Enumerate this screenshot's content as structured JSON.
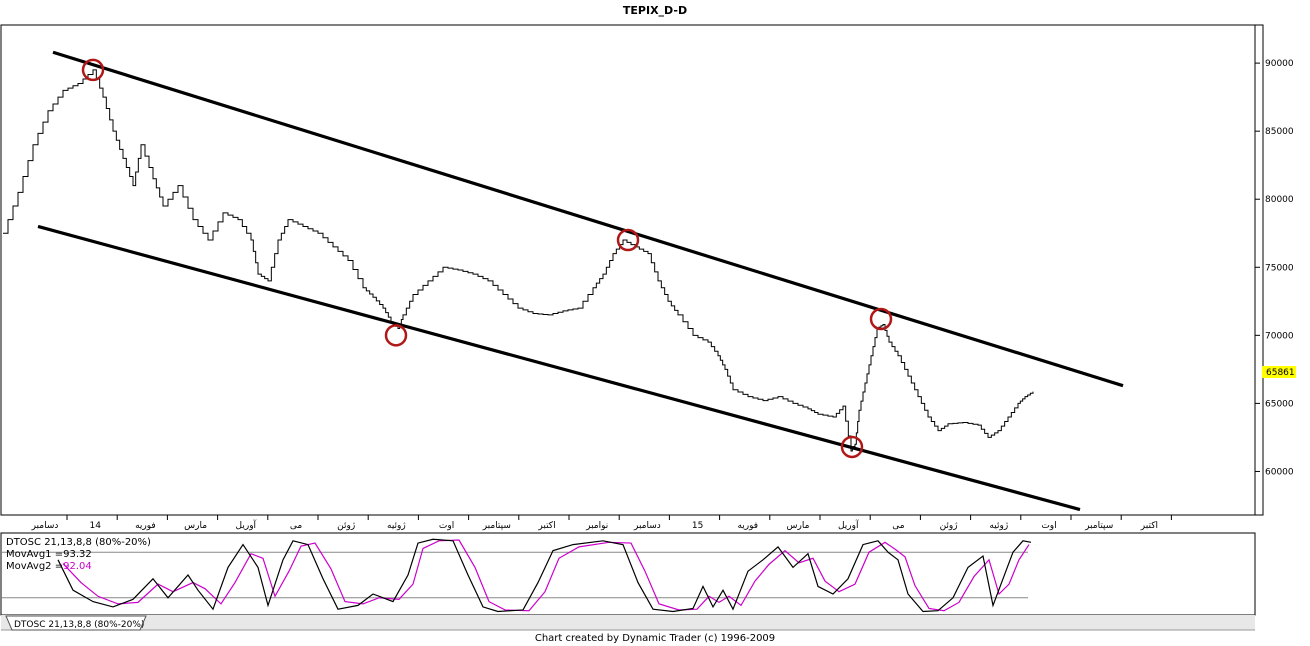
{
  "chart_data": [
    {
      "type": "line",
      "title": "TEPIX_D-D",
      "ylim": [
        56800,
        92800
      ],
      "y_ticks": [
        "90000",
        "85000",
        "80000",
        "75000",
        "70000",
        "65000",
        "60000"
      ],
      "last_value_label": "65861",
      "last_value_color": "#ffff00",
      "x_month_labels": [
        "دسامبر",
        "14",
        "فوریه",
        "مارس",
        "آوریل",
        "می",
        "ژوئن",
        "ژوئیه",
        "اوت",
        "سپتامبر",
        "اکتبر",
        "نوامبر",
        "دسامبر",
        "15",
        "فوریه",
        "مارس",
        "آوریل",
        "می",
        "ژوئن",
        "ژوئیه",
        "اوت",
        "سپتامبر",
        "اکتبر"
      ],
      "price_points": [
        [
          0,
          77500
        ],
        [
          15,
          80500
        ],
        [
          30,
          84000
        ],
        [
          45,
          86500
        ],
        [
          60,
          88000
        ],
        [
          75,
          88500
        ],
        [
          90,
          89500
        ],
        [
          100,
          87500
        ],
        [
          110,
          85000
        ],
        [
          120,
          83000
        ],
        [
          130,
          81000
        ],
        [
          138,
          84000
        ],
        [
          150,
          81500
        ],
        [
          160,
          79500
        ],
        [
          175,
          81000
        ],
        [
          190,
          78500
        ],
        [
          205,
          77000
        ],
        [
          220,
          79000
        ],
        [
          235,
          78500
        ],
        [
          248,
          77000
        ],
        [
          255,
          74500
        ],
        [
          265,
          74000
        ],
        [
          275,
          77000
        ],
        [
          285,
          78500
        ],
        [
          300,
          78000
        ],
        [
          315,
          77500
        ],
        [
          330,
          76500
        ],
        [
          345,
          75500
        ],
        [
          360,
          73500
        ],
        [
          370,
          72800
        ],
        [
          380,
          72000
        ],
        [
          388,
          71000
        ],
        [
          395,
          70500
        ],
        [
          400,
          71500
        ],
        [
          410,
          73000
        ],
        [
          425,
          74000
        ],
        [
          440,
          75000
        ],
        [
          455,
          74800
        ],
        [
          470,
          74500
        ],
        [
          485,
          74000
        ],
        [
          500,
          73000
        ],
        [
          515,
          72000
        ],
        [
          530,
          71600
        ],
        [
          545,
          71500
        ],
        [
          560,
          71800
        ],
        [
          575,
          72000
        ],
        [
          590,
          73500
        ],
        [
          600,
          74500
        ],
        [
          610,
          76000
        ],
        [
          620,
          77000
        ],
        [
          632,
          76500
        ],
        [
          645,
          76000
        ],
        [
          655,
          74000
        ],
        [
          665,
          72500
        ],
        [
          675,
          71500
        ],
        [
          690,
          70000
        ],
        [
          705,
          69500
        ],
        [
          715,
          68500
        ],
        [
          722,
          67500
        ],
        [
          730,
          66000
        ],
        [
          745,
          65500
        ],
        [
          760,
          65200
        ],
        [
          775,
          65500
        ],
        [
          790,
          65000
        ],
        [
          805,
          64600
        ],
        [
          815,
          64200
        ],
        [
          830,
          64000
        ],
        [
          840,
          64800
        ],
        [
          848,
          61500
        ],
        [
          852,
          62000
        ],
        [
          856,
          64500
        ],
        [
          862,
          66500
        ],
        [
          868,
          68500
        ],
        [
          874,
          70500
        ],
        [
          880,
          70800
        ],
        [
          886,
          69500
        ],
        [
          895,
          68500
        ],
        [
          905,
          67000
        ],
        [
          915,
          65500
        ],
        [
          925,
          64000
        ],
        [
          935,
          63000
        ],
        [
          945,
          63500
        ],
        [
          960,
          63600
        ],
        [
          975,
          63400
        ],
        [
          985,
          62500
        ],
        [
          995,
          63000
        ],
        [
          1005,
          64000
        ],
        [
          1015,
          65000
        ],
        [
          1022,
          65500
        ],
        [
          1030,
          65861
        ]
      ],
      "annotation_circles": [
        [
          90,
          89500
        ],
        [
          393,
          70000
        ],
        [
          625,
          77000
        ],
        [
          849,
          61800
        ],
        [
          878,
          71200
        ]
      ],
      "trend_lines": [
        {
          "x1": 50,
          "y1": 90800,
          "x2": 1120,
          "y2": 66300
        },
        {
          "x1": 35,
          "y1": 78000,
          "x2": 1077,
          "y2": 57200
        }
      ],
      "oscillator": {
        "label_line": "DTOSC 21,13,8,8 (80%-20%)",
        "ma1_label": "MovAvg1 =",
        "ma1_value": "93.32",
        "ma1_color": "#000000",
        "ma2_label": "MovAvg2 =",
        "ma2_value": "92.04",
        "ma2_color": "#cc00cc",
        "ylim": [
          0,
          100
        ],
        "upper_band": 80,
        "lower_band": 20,
        "ma1_points": [
          [
            55,
            70
          ],
          [
            70,
            30
          ],
          [
            90,
            15
          ],
          [
            110,
            8
          ],
          [
            130,
            18
          ],
          [
            150,
            45
          ],
          [
            165,
            20
          ],
          [
            185,
            50
          ],
          [
            195,
            30
          ],
          [
            210,
            5
          ],
          [
            225,
            60
          ],
          [
            240,
            90
          ],
          [
            255,
            60
          ],
          [
            265,
            10
          ],
          [
            280,
            70
          ],
          [
            290,
            95
          ],
          [
            305,
            90
          ],
          [
            320,
            45
          ],
          [
            335,
            5
          ],
          [
            355,
            10
          ],
          [
            370,
            25
          ],
          [
            390,
            15
          ],
          [
            405,
            50
          ],
          [
            415,
            92
          ],
          [
            430,
            97
          ],
          [
            450,
            95
          ],
          [
            465,
            50
          ],
          [
            480,
            8
          ],
          [
            495,
            2
          ],
          [
            520,
            4
          ],
          [
            535,
            40
          ],
          [
            550,
            82
          ],
          [
            570,
            90
          ],
          [
            600,
            95
          ],
          [
            620,
            90
          ],
          [
            635,
            40
          ],
          [
            650,
            5
          ],
          [
            670,
            2
          ],
          [
            690,
            6
          ],
          [
            700,
            35
          ],
          [
            710,
            8
          ],
          [
            720,
            30
          ],
          [
            730,
            5
          ],
          [
            745,
            55
          ],
          [
            760,
            70
          ],
          [
            775,
            87
          ],
          [
            790,
            60
          ],
          [
            805,
            78
          ],
          [
            815,
            35
          ],
          [
            830,
            25
          ],
          [
            845,
            45
          ],
          [
            860,
            90
          ],
          [
            875,
            95
          ],
          [
            885,
            80
          ],
          [
            895,
            70
          ],
          [
            905,
            25
          ],
          [
            920,
            2
          ],
          [
            935,
            3
          ],
          [
            950,
            20
          ],
          [
            965,
            60
          ],
          [
            980,
            75
          ],
          [
            990,
            10
          ],
          [
            1000,
            45
          ],
          [
            1010,
            80
          ],
          [
            1020,
            95
          ],
          [
            1028,
            93
          ]
        ],
        "ma2_points": [
          [
            60,
            65
          ],
          [
            78,
            40
          ],
          [
            95,
            22
          ],
          [
            115,
            12
          ],
          [
            135,
            14
          ],
          [
            155,
            38
          ],
          [
            170,
            28
          ],
          [
            190,
            40
          ],
          [
            202,
            32
          ],
          [
            218,
            12
          ],
          [
            232,
            40
          ],
          [
            248,
            78
          ],
          [
            260,
            72
          ],
          [
            272,
            22
          ],
          [
            286,
            55
          ],
          [
            298,
            88
          ],
          [
            312,
            92
          ],
          [
            328,
            58
          ],
          [
            342,
            15
          ],
          [
            360,
            12
          ],
          [
            376,
            20
          ],
          [
            396,
            18
          ],
          [
            410,
            38
          ],
          [
            420,
            85
          ],
          [
            436,
            95
          ],
          [
            456,
            96
          ],
          [
            472,
            60
          ],
          [
            486,
            15
          ],
          [
            502,
            4
          ],
          [
            526,
            3
          ],
          [
            542,
            28
          ],
          [
            556,
            72
          ],
          [
            576,
            87
          ],
          [
            606,
            93
          ],
          [
            628,
            92
          ],
          [
            642,
            55
          ],
          [
            656,
            12
          ],
          [
            676,
            4
          ],
          [
            694,
            5
          ],
          [
            706,
            22
          ],
          [
            716,
            14
          ],
          [
            726,
            22
          ],
          [
            738,
            10
          ],
          [
            752,
            42
          ],
          [
            766,
            64
          ],
          [
            782,
            82
          ],
          [
            796,
            66
          ],
          [
            810,
            72
          ],
          [
            822,
            42
          ],
          [
            836,
            28
          ],
          [
            852,
            38
          ],
          [
            866,
            80
          ],
          [
            882,
            93
          ],
          [
            892,
            84
          ],
          [
            902,
            74
          ],
          [
            912,
            36
          ],
          [
            926,
            6
          ],
          [
            941,
            3
          ],
          [
            956,
            14
          ],
          [
            971,
            48
          ],
          [
            986,
            70
          ],
          [
            996,
            25
          ],
          [
            1006,
            38
          ],
          [
            1016,
            70
          ],
          [
            1026,
            90
          ]
        ]
      }
    }
  ],
  "tab_label": "DTOSC 21,13,8,8 (80%-20%)",
  "footer": "Chart created by Dynamic Trader  (c)  1996-2009"
}
